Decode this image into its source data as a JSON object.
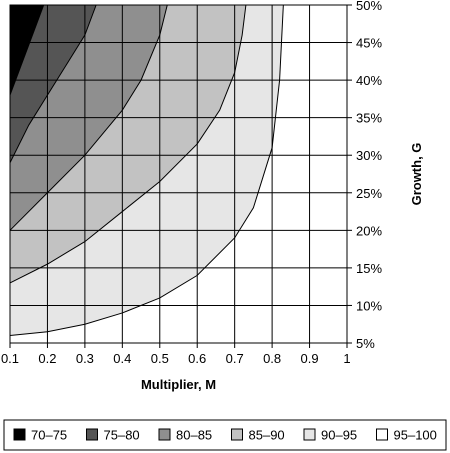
{
  "chart_data": {
    "type": "heatmap",
    "subtype": "filled-contour",
    "title": "",
    "xlabel": "Multiplier, M",
    "ylabel": "Growth, G",
    "xlim": [
      0.1,
      1.0
    ],
    "ylim": [
      0.05,
      0.5
    ],
    "x_ticks": [
      "0.1",
      "0.2",
      "0.3",
      "0.4",
      "0.5",
      "0.6",
      "0.7",
      "0.8",
      "0.9",
      "1"
    ],
    "y_ticks": [
      "5%",
      "10%",
      "15%",
      "20%",
      "25%",
      "30%",
      "35%",
      "40%",
      "45%",
      "50%"
    ],
    "y_axis_side": "right",
    "grid": true,
    "legend_position": "bottom",
    "bands": [
      {
        "label": "70–75",
        "color": "#000000"
      },
      {
        "label": "75–80",
        "color": "#555555"
      },
      {
        "label": "80–85",
        "color": "#8f8f8f"
      },
      {
        "label": "85–90",
        "color": "#c2c2c2"
      },
      {
        "label": "90–95",
        "color": "#e6e6e6"
      },
      {
        "label": "95–100",
        "color": "#ffffff"
      }
    ],
    "contours": [
      {
        "level": 75,
        "points": [
          [
            0.1,
            0.38
          ],
          [
            0.13,
            0.42
          ],
          [
            0.16,
            0.46
          ],
          [
            0.19,
            0.5
          ]
        ]
      },
      {
        "level": 80,
        "points": [
          [
            0.1,
            0.29
          ],
          [
            0.15,
            0.34
          ],
          [
            0.2,
            0.38
          ],
          [
            0.25,
            0.42
          ],
          [
            0.3,
            0.46
          ],
          [
            0.33,
            0.5
          ]
        ]
      },
      {
        "level": 85,
        "points": [
          [
            0.1,
            0.2
          ],
          [
            0.2,
            0.25
          ],
          [
            0.3,
            0.3
          ],
          [
            0.4,
            0.36
          ],
          [
            0.45,
            0.4
          ],
          [
            0.5,
            0.46
          ],
          [
            0.52,
            0.5
          ]
        ]
      },
      {
        "level": 90,
        "points": [
          [
            0.1,
            0.13
          ],
          [
            0.2,
            0.155
          ],
          [
            0.3,
            0.185
          ],
          [
            0.4,
            0.225
          ],
          [
            0.5,
            0.265
          ],
          [
            0.6,
            0.315
          ],
          [
            0.66,
            0.36
          ],
          [
            0.7,
            0.41
          ],
          [
            0.72,
            0.46
          ],
          [
            0.73,
            0.5
          ]
        ]
      },
      {
        "level": 95,
        "points": [
          [
            0.1,
            0.06
          ],
          [
            0.2,
            0.065
          ],
          [
            0.3,
            0.075
          ],
          [
            0.4,
            0.09
          ],
          [
            0.5,
            0.11
          ],
          [
            0.6,
            0.14
          ],
          [
            0.7,
            0.19
          ],
          [
            0.75,
            0.23
          ],
          [
            0.8,
            0.31
          ],
          [
            0.82,
            0.4
          ],
          [
            0.83,
            0.5
          ]
        ]
      }
    ]
  }
}
